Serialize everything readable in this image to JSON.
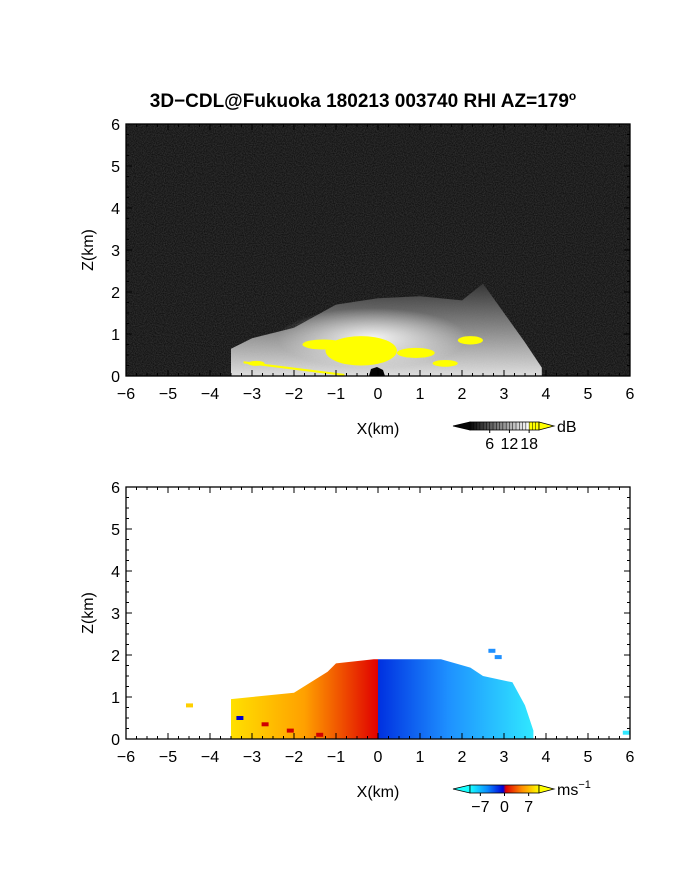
{
  "title": "3D−CDL@Fukuoka 180213 003740 RHI AZ=179",
  "title_superscript": "o",
  "colors": {
    "background": "#ffffff",
    "power_panel_bg": "#050505",
    "saturated": "#ffff00",
    "axis": "#000000"
  },
  "chart_data": [
    {
      "type": "heatmap",
      "panel": "power",
      "title": "",
      "xlabel": "X(km)",
      "ylabel": "Z(km)",
      "xlim": [
        -6,
        6
      ],
      "ylim": [
        0,
        6
      ],
      "x_ticks": [
        "−6",
        "−5",
        "−4",
        "−3",
        "−2",
        "−1",
        "0",
        "1",
        "2",
        "3",
        "4",
        "5",
        "6"
      ],
      "y_ticks": [
        "0",
        "1",
        "2",
        "3",
        "4",
        "5",
        "6"
      ],
      "colorbar": {
        "unit": "dB",
        "ticks": [
          "6",
          "12",
          "18"
        ],
        "tick_values": [
          6,
          12,
          18
        ],
        "range": [
          0,
          21
        ],
        "colormap": "grayscale, yellow above 18",
        "extend": "both"
      },
      "echo_top_km": [
        [
          -3.5,
          0.65
        ],
        [
          -3,
          0.9
        ],
        [
          -2,
          1.15
        ],
        [
          -1,
          1.7
        ],
        [
          0,
          1.85
        ],
        [
          1,
          1.9
        ],
        [
          2,
          1.8
        ],
        [
          2.5,
          2.2
        ],
        [
          3,
          1.5
        ],
        [
          3.5,
          0.8
        ],
        [
          3.9,
          0.2
        ]
      ]
    },
    {
      "type": "heatmap",
      "panel": "doppler_velocity",
      "title": "",
      "xlabel": "X(km)",
      "ylabel": "Z(km)",
      "xlim": [
        -6,
        6
      ],
      "ylim": [
        0,
        6
      ],
      "x_ticks": [
        "−6",
        "−5",
        "−4",
        "−3",
        "−2",
        "−1",
        "0",
        "1",
        "2",
        "3",
        "4",
        "5",
        "6"
      ],
      "y_ticks": [
        "0",
        "1",
        "2",
        "3",
        "4",
        "5",
        "6"
      ],
      "colorbar": {
        "unit": "ms",
        "unit_superscript": "−1",
        "ticks": [
          "−7",
          "0",
          "7"
        ],
        "tick_values": [
          -7,
          0,
          7
        ],
        "range": [
          -10,
          10
        ],
        "colormap": "cyan-blue-red-orange-yellow",
        "extend": "both"
      },
      "echo_top_km": [
        [
          -3.5,
          0.95
        ],
        [
          -3,
          1.0
        ],
        [
          -2,
          1.1
        ],
        [
          -1.2,
          1.6
        ],
        [
          -1,
          1.8
        ],
        [
          -0.1,
          1.9
        ],
        [
          0.5,
          1.9
        ],
        [
          1.5,
          1.9
        ],
        [
          2.2,
          1.7
        ],
        [
          2.5,
          1.5
        ],
        [
          3.2,
          1.35
        ],
        [
          3.5,
          0.8
        ],
        [
          3.7,
          0.2
        ]
      ]
    }
  ]
}
